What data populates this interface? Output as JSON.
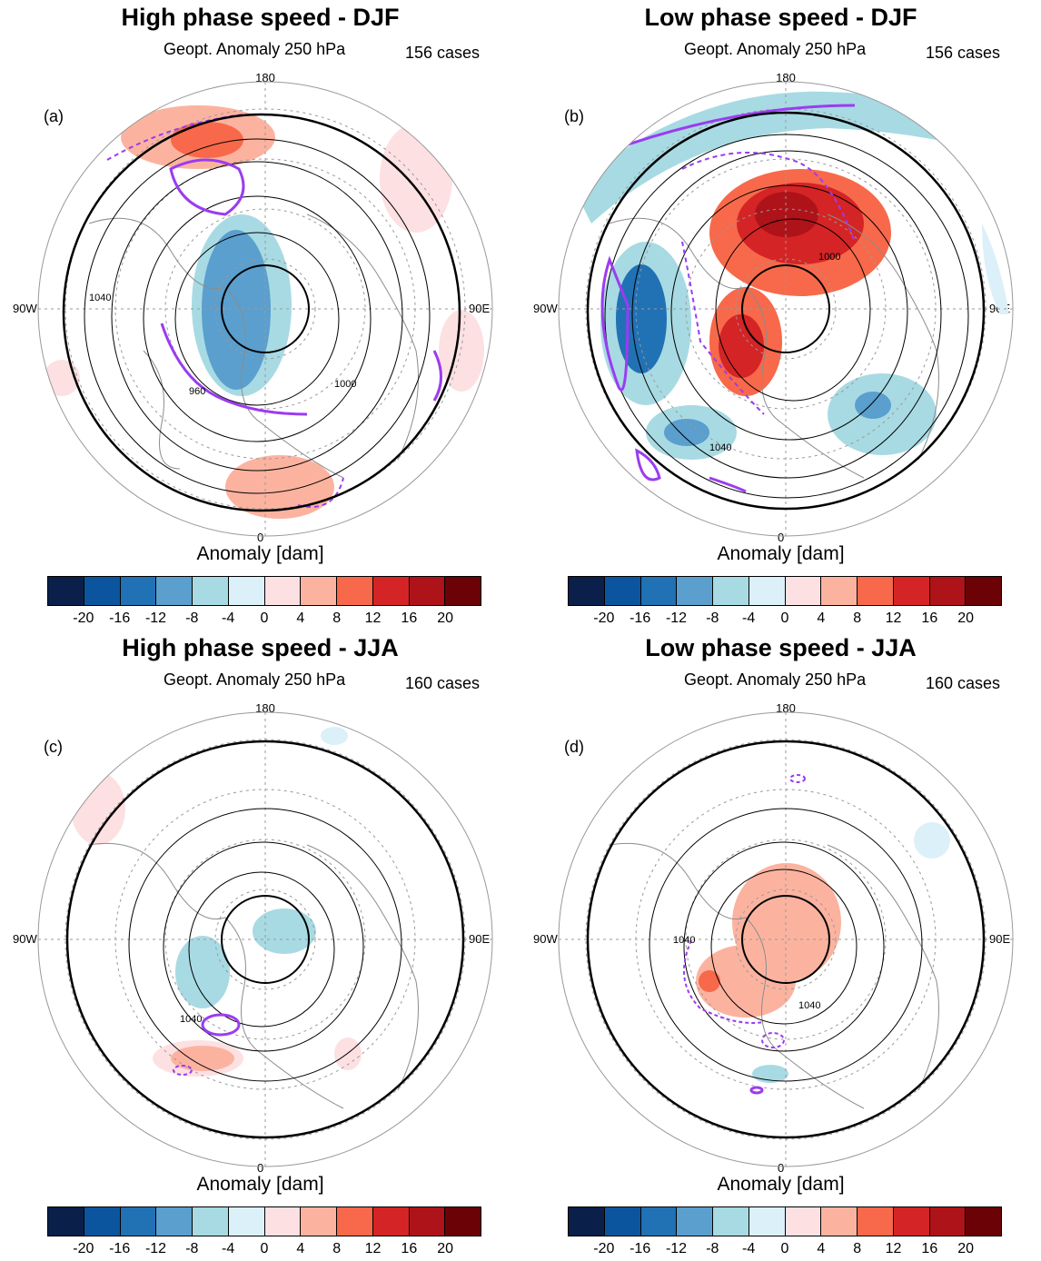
{
  "panels": [
    {
      "title": "High phase speed - DJF",
      "subtitle": "Geopt. Anomaly 250 hPa",
      "cases": "156 cases",
      "letter": "(a)"
    },
    {
      "title": "Low phase speed - DJF",
      "subtitle": "Geopt. Anomaly 250 hPa",
      "cases": "156 cases",
      "letter": "(b)"
    },
    {
      "title": "High phase speed - JJA",
      "subtitle": "Geopt. Anomaly 250 hPa",
      "cases": "160 cases",
      "letter": "(c)"
    },
    {
      "title": "Low phase speed - JJA",
      "subtitle": "Geopt. Anomaly 250 hPa",
      "cases": "160 cases",
      "letter": "(d)"
    }
  ],
  "map_labels": {
    "top": "180",
    "left": "90W",
    "right": "90E",
    "bottom": "0"
  },
  "contour_labels": {
    "c960": "960",
    "c1000": "1000",
    "c1040": "1040"
  },
  "colorbar": {
    "label": "Anomaly [dam]",
    "colors": [
      "#0a1f4a",
      "#0b559f",
      "#2171b5",
      "#5a9fce",
      "#a8dae3",
      "#dbf0f8",
      "#fde0e2",
      "#fbb3a0",
      "#f7694a",
      "#d52425",
      "#ae1319",
      "#6a0206"
    ],
    "ticks": [
      "-20",
      "-16",
      "-12",
      "-8",
      "-4",
      "0",
      "4",
      "8",
      "12",
      "16",
      "20"
    ]
  },
  "colors": {
    "contour": "#000000",
    "significance": "#9b3cf0",
    "grid": "#999999",
    "coast": "#8c8c8c"
  }
}
